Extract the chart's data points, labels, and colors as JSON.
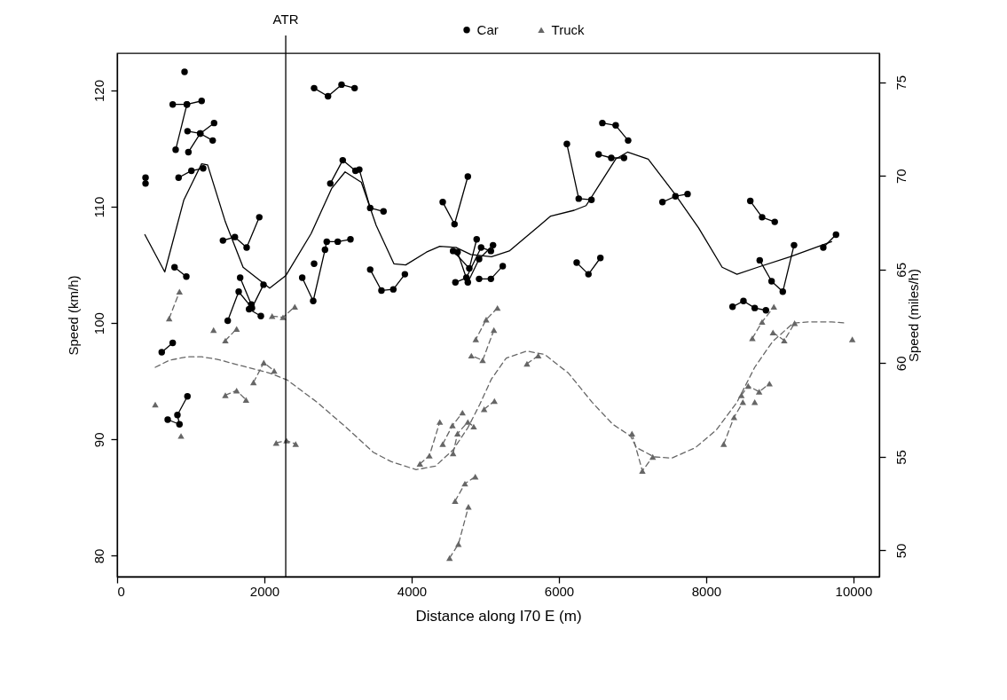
{
  "chart_data": {
    "type": "line",
    "xlabel": "Distance along I70 E (m)",
    "ylabel": "Speed (km/h)",
    "y2label": "Speed (miles/h)",
    "xlim": [
      0,
      10350
    ],
    "xticks": [
      0,
      2000,
      4000,
      6000,
      8000,
      10000
    ],
    "ylim": [
      78.2,
      123.2
    ],
    "yticks": [
      80,
      90,
      100,
      110,
      120
    ],
    "y2lim": [
      48.6,
      76.55
    ],
    "y2ticks": [
      50,
      55,
      60,
      65,
      70,
      75
    ],
    "legend": "top",
    "grid": false,
    "ref_lines": [
      {
        "axis": "x",
        "value": 2290,
        "label": "ATR",
        "color": "#000000",
        "line_style": "solid"
      }
    ],
    "series": [
      {
        "name": "Car",
        "color": "#000000",
        "marker": "circle",
        "line_style": "solid",
        "x": [
          386,
          386,
          null,
          916,
          null,
          755,
          948,
          1148,
          null,
          795,
          948,
          null,
          968,
          1129,
          1317,
          null,
          956,
          1129,
          1298,
          null,
          835,
          1009,
          1169,
          null,
          1437,
          1599,
          1759,
          1931,
          null,
          780,
          940,
          null,
          1502,
          1651,
          1831,
          1988,
          null,
          1671,
          1823,
          1792,
          1952,
          null,
          2675,
          2864,
          3048,
          3225,
          null,
          2895,
          3064,
          3237,
          3289,
          3437,
          3618,
          null,
          2514,
          2663,
          2823,
          2847,
          2996,
          3169,
          null,
          2675,
          null,
          3437,
          3590,
          3751,
          3908,
          null,
          4422,
          4582,
          4763,
          null,
          4563,
          4783,
          4883,
          null,
          4623,
          4763,
          4916,
          5105,
          null,
          4594,
          4743,
          4943,
          5076,
          null,
          4916,
          5076,
          5237,
          null,
          6108,
          6269,
          6442,
          null,
          6590,
          6771,
          6940,
          null,
          6539,
          6711,
          6884,
          null,
          6241,
          6401,
          6563,
          null,
          7406,
          7582,
          7747,
          null,
          8599,
          8759,
          8931,
          null,
          8727,
          8888,
          9040,
          9193,
          null,
          9590,
          9763,
          null,
          8358,
          8506,
          8659,
          8811,
          null,
          606,
          755,
          null,
          687,
          847,
          819,
          955
        ],
        "values": [
          112.5,
          112.0,
          null,
          121.6,
          null,
          118.8,
          118.8,
          119.1,
          null,
          114.9,
          118.8,
          null,
          114.7,
          116.3,
          117.2,
          null,
          116.5,
          116.3,
          115.7,
          null,
          112.5,
          113.1,
          113.3,
          null,
          107.1,
          107.4,
          106.5,
          109.1,
          null,
          104.8,
          104.0,
          null,
          100.2,
          102.7,
          101.3,
          103.3,
          null,
          103.9,
          101.6,
          101.2,
          100.6,
          null,
          120.2,
          119.5,
          120.5,
          120.2,
          null,
          112.0,
          114.0,
          113.1,
          113.2,
          109.9,
          109.6,
          null,
          103.9,
          101.9,
          106.3,
          107.0,
          107.0,
          107.2,
          null,
          105.1,
          null,
          104.6,
          102.8,
          102.9,
          104.2,
          null,
          110.4,
          108.5,
          112.6,
          null,
          106.2,
          104.7,
          107.2,
          null,
          106.1,
          103.5,
          105.5,
          106.7,
          null,
          103.5,
          103.9,
          106.5,
          106.2,
          null,
          103.8,
          103.8,
          104.9,
          null,
          115.4,
          110.7,
          110.6,
          null,
          117.2,
          117.0,
          115.7,
          null,
          114.5,
          114.2,
          114.2,
          null,
          105.2,
          104.2,
          105.6,
          null,
          110.4,
          110.9,
          111.1,
          null,
          110.5,
          109.1,
          108.7,
          null,
          105.4,
          103.6,
          102.7,
          106.7,
          null,
          106.5,
          107.6,
          null,
          101.4,
          101.9,
          101.3,
          101.1,
          null,
          97.5,
          98.3,
          null,
          91.7,
          91.3,
          92.1,
          93.7
        ]
      },
      {
        "name": "Truck",
        "color": "#666666",
        "marker": "triangle",
        "line_style": "dashed",
        "x": [
          707,
          847,
          null,
          518,
          null,
          868,
          null,
          1470,
          1623,
          null,
          1310,
          null,
          2105,
          2253,
          2413,
          null,
          1852,
          1992,
          2133,
          null,
          1470,
          1623,
          1751,
          null,
          2160,
          2301,
          2425,
          null,
          5165,
          5012,
          4871,
          null,
          5117,
          4964,
          4811,
          null,
          5566,
          5719,
          null,
          4984,
          5124,
          null,
          4112,
          4241,
          4382,
          null,
          4422,
          4554,
          4690,
          null,
          4563,
          4623,
          4763,
          4843,
          null,
          4515,
          4635,
          4771,
          null,
          4590,
          4723,
          4864,
          null,
          6992,
          7133,
          7274,
          null,
          8238,
          8378,
          8498,
          null,
          8478,
          8570,
          8719,
          8859,
          null,
          8659,
          null,
          8627,
          8759,
          8919,
          null,
          8907,
          9060,
          9201,
          null,
          9984
        ],
        "values": [
          100.4,
          102.7,
          null,
          93.0,
          null,
          90.3,
          null,
          98.5,
          99.5,
          null,
          99.4,
          null,
          100.6,
          100.5,
          101.4,
          null,
          94.9,
          96.6,
          95.9,
          null,
          93.8,
          94.2,
          93.4,
          null,
          89.7,
          89.9,
          89.6,
          null,
          101.3,
          100.3,
          98.6,
          null,
          99.4,
          96.8,
          97.2,
          null,
          96.5,
          97.2,
          null,
          92.6,
          93.3,
          null,
          87.9,
          88.6,
          91.5,
          null,
          89.6,
          91.2,
          92.3,
          null,
          88.8,
          90.5,
          91.5,
          91.1,
          null,
          79.8,
          81.0,
          84.2,
          null,
          84.7,
          86.2,
          86.8,
          null,
          90.5,
          87.3,
          88.5,
          null,
          89.6,
          91.9,
          93.2,
          null,
          93.8,
          94.6,
          94.1,
          94.8,
          null,
          93.2,
          null,
          98.7,
          100.1,
          101.4,
          null,
          99.2,
          98.5,
          100.0,
          null,
          98.6
        ]
      },
      {
        "color": "#000000",
        "marker": "none",
        "line_style": "solid",
        "x": [
          377,
          647,
          907,
          1148,
          1229,
          1470,
          1711,
          2072,
          2293,
          2635,
          2916,
          3096,
          3317,
          3518,
          3759,
          3919,
          4201,
          4382,
          4602,
          4803,
          5084,
          5325,
          5647,
          5888,
          6208,
          6369,
          6569,
          6771,
          6931,
          7213,
          7574,
          7895,
          8217,
          8418,
          8699,
          9141,
          9703
        ],
        "values": [
          107.6,
          104.4,
          110.6,
          113.7,
          113.6,
          108.7,
          104.8,
          103.0,
          104.1,
          107.7,
          111.6,
          113.0,
          112.1,
          108.4,
          105.1,
          105.0,
          106.1,
          106.6,
          106.5,
          105.9,
          105.7,
          106.2,
          107.9,
          109.2,
          109.7,
          110.1,
          112.1,
          114.1,
          114.7,
          114.1,
          111.1,
          108.2,
          104.8,
          104.2,
          104.8,
          105.7,
          107.0
        ]
      },
      {
        "color": "#666666",
        "marker": "none",
        "line_style": "dashed",
        "x": [
          518,
          707,
          948,
          1148,
          1349,
          1711,
          2072,
          2313,
          2715,
          3117,
          3478,
          3719,
          4060,
          4322,
          4563,
          4763,
          4924,
          5084,
          5285,
          5566,
          5807,
          6129,
          6450,
          6731,
          6972,
          7052,
          7293,
          7534,
          7855,
          8136,
          8418,
          8659,
          8900,
          9181,
          9382,
          9703,
          9904
        ],
        "values": [
          96.2,
          96.8,
          97.1,
          97.1,
          96.9,
          96.3,
          95.7,
          95.1,
          93.2,
          91.0,
          88.9,
          88.1,
          87.4,
          87.7,
          89.1,
          91.0,
          93.0,
          95.2,
          97.0,
          97.6,
          97.3,
          95.7,
          93.2,
          91.3,
          90.3,
          89.3,
          88.5,
          88.4,
          89.3,
          90.8,
          93.2,
          96.2,
          98.4,
          100.0,
          100.1,
          100.1,
          100.0
        ]
      }
    ]
  }
}
